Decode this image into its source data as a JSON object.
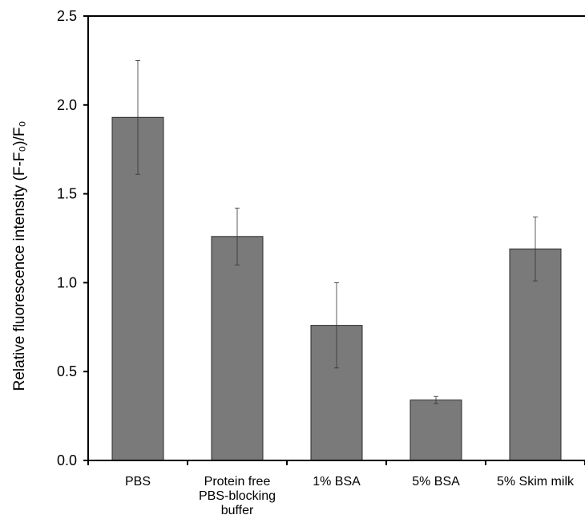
{
  "chart_data": {
    "type": "bar",
    "categories": [
      [
        "PBS"
      ],
      [
        "Protein free",
        "PBS-blocking",
        "buffer"
      ],
      [
        "1% BSA"
      ],
      [
        "5% BSA"
      ],
      [
        "5% Skim milk"
      ]
    ],
    "values": [
      1.93,
      1.26,
      0.76,
      0.34,
      1.19
    ],
    "errors": [
      0.32,
      0.16,
      0.24,
      0.02,
      0.18
    ],
    "ylabel": "Relative fluorescence intensity (F-F₀)/F₀",
    "ylim": [
      0,
      2.5
    ],
    "yticks": [
      "0.0",
      "0.5",
      "1.0",
      "1.5",
      "2.0",
      "2.5"
    ],
    "grid": false,
    "colors": {
      "bar": "#7a7a7a",
      "bar_edge": "#2b2b2b",
      "axis": "#000000",
      "error": "#333333"
    }
  }
}
